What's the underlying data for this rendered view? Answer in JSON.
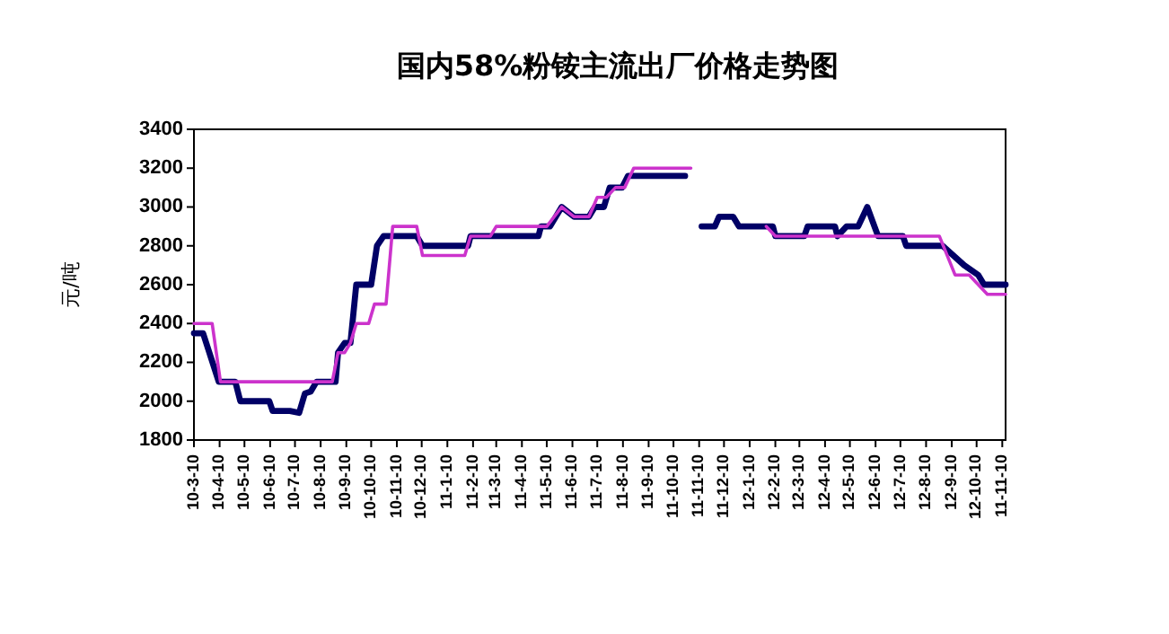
{
  "chart_data": {
    "type": "line",
    "title": "国内58%粉铵主流出厂价格走势图",
    "ylabel": "元/吨",
    "xlim": [
      "2010-03-10",
      "2012-11-14"
    ],
    "ylim": [
      1800,
      3400
    ],
    "yticks": [
      1800,
      2000,
      2200,
      2400,
      2600,
      2800,
      3000,
      3200,
      3400
    ],
    "xticks": [
      {
        "value": "2010-03-10",
        "label": "10-3-10"
      },
      {
        "value": "2010-04-10",
        "label": "10-4-10"
      },
      {
        "value": "2010-05-10",
        "label": "10-5-10"
      },
      {
        "value": "2010-06-10",
        "label": "10-6-10"
      },
      {
        "value": "2010-07-10",
        "label": "10-7-10"
      },
      {
        "value": "2010-08-10",
        "label": "10-8-10"
      },
      {
        "value": "2010-09-10",
        "label": "10-9-10"
      },
      {
        "value": "2010-10-10",
        "label": "10-10-10"
      },
      {
        "value": "2010-11-10",
        "label": "10-11-10"
      },
      {
        "value": "2010-12-10",
        "label": "10-12-10"
      },
      {
        "value": "2011-01-10",
        "label": "11-1-10"
      },
      {
        "value": "2011-02-10",
        "label": "11-2-10"
      },
      {
        "value": "2011-03-10",
        "label": "11-3-10"
      },
      {
        "value": "2011-04-10",
        "label": "11-4-10"
      },
      {
        "value": "2011-05-10",
        "label": "11-5-10"
      },
      {
        "value": "2011-06-10",
        "label": "11-6-10"
      },
      {
        "value": "2011-07-10",
        "label": "11-7-10"
      },
      {
        "value": "2011-08-10",
        "label": "11-8-10"
      },
      {
        "value": "2011-09-10",
        "label": "11-9-10"
      },
      {
        "value": "2011-10-10",
        "label": "11-10-10"
      },
      {
        "value": "2011-11-10",
        "label": "11-11-10"
      },
      {
        "value": "2011-12-10",
        "label": "11-12-10"
      },
      {
        "value": "2012-01-10",
        "label": "12-1-10"
      },
      {
        "value": "2012-02-10",
        "label": "12-2-10"
      },
      {
        "value": "2012-03-10",
        "label": "12-3-10"
      },
      {
        "value": "2012-04-10",
        "label": "12-4-10"
      },
      {
        "value": "2012-05-10",
        "label": "12-5-10"
      },
      {
        "value": "2012-06-10",
        "label": "12-6-10"
      },
      {
        "value": "2012-07-10",
        "label": "12-7-10"
      },
      {
        "value": "2012-08-10",
        "label": "12-8-10"
      },
      {
        "value": "2012-09-10",
        "label": "12-9-10"
      },
      {
        "value": "2012-10-10",
        "label": "12-10-10"
      },
      {
        "value": "2012-11-10",
        "label": "11-11-10"
      }
    ],
    "series": [
      {
        "color": "#000066",
        "x": [
          "2010-03-10",
          "2010-03-21",
          "2010-04-09",
          "2010-04-29",
          "2010-05-05",
          "2010-06-09",
          "2010-06-13",
          "2010-07-04",
          "2010-07-15",
          "2010-07-22",
          "2010-07-29",
          "2010-08-05",
          "2010-08-28",
          "2010-08-31",
          "2010-09-08",
          "2010-09-15",
          "2010-09-22",
          "2010-10-10",
          "2010-10-17",
          "2010-10-25",
          "2010-12-04",
          "2010-12-11",
          "2011-02-04",
          "2011-02-07",
          "2011-04-30",
          "2011-05-03",
          "2011-05-14",
          "2011-05-28",
          "2011-06-12",
          "2011-06-30",
          "2011-07-07",
          "2011-07-18",
          "2011-07-25",
          "2011-08-09",
          "2011-08-16",
          "2011-10-24",
          "2011-11-05",
          "2011-11-13",
          "2011-11-29",
          "2011-12-04",
          "2011-12-21",
          "2011-12-28",
          "2012-02-07",
          "2012-02-10",
          "2012-03-16",
          "2012-03-20",
          "2012-04-22",
          "2012-04-25",
          "2012-05-06",
          "2012-05-20",
          "2012-05-31",
          "2012-06-13",
          "2012-07-13",
          "2012-07-17",
          "2012-08-30",
          "2012-09-25",
          "2012-10-12",
          "2012-10-19",
          "2012-11-14"
        ],
        "values": [
          2350,
          2350,
          2100,
          2100,
          2000,
          2000,
          1950,
          1950,
          1940,
          2040,
          2050,
          2100,
          2100,
          2250,
          2300,
          2300,
          2600,
          2600,
          2800,
          2850,
          2850,
          2800,
          2800,
          2850,
          2850,
          2900,
          2900,
          3000,
          2950,
          2950,
          3000,
          3000,
          3100,
          3100,
          3160,
          3160,
          null,
          2900,
          2900,
          2950,
          2950,
          2900,
          2900,
          2850,
          2850,
          2900,
          2900,
          2850,
          2900,
          2900,
          3000,
          2850,
          2850,
          2800,
          2800,
          2700,
          2650,
          2600,
          2600
        ]
      },
      {
        "color": "#cc33cc",
        "x": [
          "2010-03-10",
          "2010-04-01",
          "2010-04-11",
          "2010-08-24",
          "2010-08-31",
          "2010-09-08",
          "2010-09-15",
          "2010-09-22",
          "2010-10-07",
          "2010-10-14",
          "2010-10-28",
          "2010-11-05",
          "2010-12-04",
          "2010-12-11",
          "2011-01-31",
          "2011-02-07",
          "2011-03-03",
          "2011-03-10",
          "2011-05-10",
          "2011-05-28",
          "2011-06-12",
          "2011-06-30",
          "2011-07-10",
          "2011-07-21",
          "2011-08-01",
          "2011-08-12",
          "2011-08-23",
          "2011-10-31",
          "2011-12-15",
          "2012-01-30",
          "2012-02-10",
          "2012-08-26",
          "2012-09-14",
          "2012-10-01",
          "2012-10-12",
          "2012-10-23",
          "2012-11-14"
        ],
        "values": [
          2400,
          2400,
          2100,
          2100,
          2250,
          2250,
          2300,
          2400,
          2400,
          2500,
          2500,
          2900,
          2900,
          2750,
          2750,
          2850,
          2850,
          2900,
          2900,
          3000,
          2950,
          2950,
          3050,
          3050,
          3100,
          3100,
          3200,
          3200,
          null,
          2900,
          2850,
          2850,
          2650,
          2650,
          2600,
          2550,
          2550
        ]
      }
    ]
  }
}
